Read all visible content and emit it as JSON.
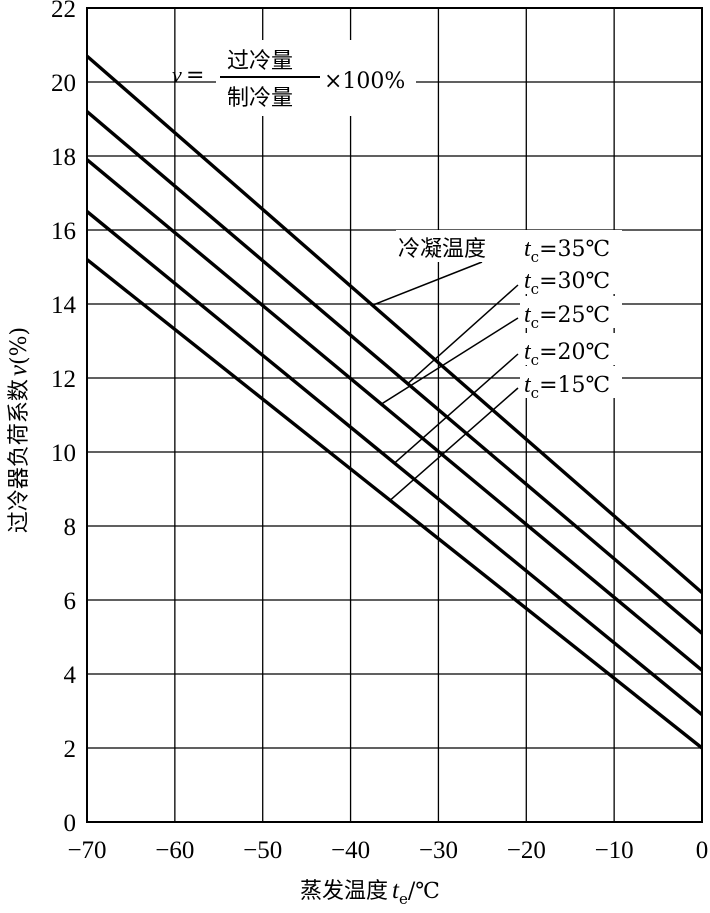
{
  "chart_data": {
    "type": "line",
    "xlabel": "蒸发温度",
    "xlabel_var": "t",
    "xlabel_sub": "e",
    "xlabel_unit": "/℃",
    "ylabel": "过冷器负荷系数",
    "ylabel_var": "v",
    "ylabel_unit": "(%)",
    "xlim": [
      -70,
      0
    ],
    "ylim": [
      0,
      22
    ],
    "x_ticks": [
      "−70",
      "−60",
      "−50",
      "−40",
      "−30",
      "−20",
      "−10",
      "0"
    ],
    "x_tick_values": [
      -70,
      -60,
      -50,
      -40,
      -30,
      -20,
      -10,
      0
    ],
    "y_ticks": [
      "0",
      "2",
      "4",
      "6",
      "8",
      "10",
      "12",
      "14",
      "16",
      "18",
      "20",
      "22"
    ],
    "y_tick_values": [
      0,
      2,
      4,
      6,
      8,
      10,
      12,
      14,
      16,
      18,
      20,
      22
    ],
    "grid": true,
    "formula": {
      "lhs": "v",
      "eq": "=",
      "numerator": "过冷量",
      "denominator": "制冷量",
      "rhs": "×100%"
    },
    "legend_title": "冷凝温度",
    "series": [
      {
        "name": "35℃",
        "var": "t",
        "sub": "c",
        "eq": "=",
        "x": [
          -70,
          0
        ],
        "y": [
          20.7,
          6.2
        ]
      },
      {
        "name": "30℃",
        "var": "t",
        "sub": "c",
        "eq": "=",
        "x": [
          -70,
          0
        ],
        "y": [
          19.2,
          5.1
        ]
      },
      {
        "name": "25℃",
        "var": "t",
        "sub": "c",
        "eq": "=",
        "x": [
          -70,
          0
        ],
        "y": [
          17.9,
          4.1
        ]
      },
      {
        "name": "20℃",
        "var": "t",
        "sub": "c",
        "eq": "=",
        "x": [
          -70,
          0
        ],
        "y": [
          16.5,
          2.9
        ]
      },
      {
        "name": "15℃",
        "var": "t",
        "sub": "c",
        "eq": "=",
        "x": [
          -70,
          0
        ],
        "y": [
          15.2,
          2.0
        ]
      }
    ]
  }
}
